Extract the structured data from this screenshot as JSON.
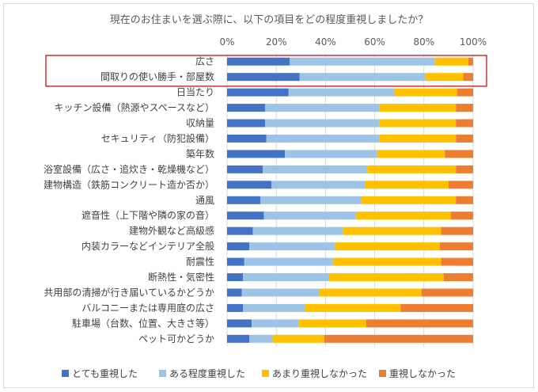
{
  "chart_data": {
    "type": "bar",
    "orientation": "horizontal",
    "stacked": "percent",
    "title": "現在のお住まいを選ぶ際に、以下の項目をどの程度重視しましたか？",
    "xlim": [
      0,
      100
    ],
    "xticks": [
      "0%",
      "20%",
      "40%",
      "60%",
      "80%",
      "100%"
    ],
    "grid": true,
    "legend": "bottom",
    "categories": [
      "広さ",
      "間取りの使い勝手・部屋数",
      "日当たり",
      "キッチン設備（熱源やスペースなど）",
      "収納量",
      "セキュリティ（防犯設備）",
      "築年数",
      "浴室設備（広さ・追炊き・乾燥機など）",
      "建物構造（鉄筋コンクリート造か否か）",
      "通風",
      "遮音性（上下階や隣の家の音）",
      "建物外観など高級感",
      "内装カラーなどインテリア全般",
      "耐震性",
      "断熱性・気密性",
      "共用部の清掃が行き届いているかどうか",
      "バルコニーまたは専用庭の広さ",
      "駐車場（台数、位置、大きさ等）",
      "ペット可かどうか"
    ],
    "series": [
      {
        "name": "とても重視した",
        "color": "#4472c4",
        "values": [
          25.5,
          29.5,
          25,
          15.5,
          15.5,
          16,
          23.5,
          14.5,
          18,
          13.5,
          15,
          10.5,
          9,
          7,
          6.5,
          6,
          6.5,
          10,
          9
        ]
      },
      {
        "name": "ある程度重視した",
        "color": "#9dc3e6",
        "values": [
          59,
          51,
          43,
          46.5,
          46.5,
          46,
          37.5,
          42.5,
          38,
          41,
          37.5,
          36.5,
          35,
          36,
          35,
          31.5,
          25,
          19,
          9.5
        ]
      },
      {
        "name": "あまり重視しなかった",
        "color": "#ffc000",
        "values": [
          13.5,
          15.5,
          25.5,
          31,
          31,
          31,
          27.5,
          36,
          34,
          38.5,
          38.5,
          40,
          42.5,
          44,
          46.5,
          41.5,
          39,
          27.5,
          21
        ]
      },
      {
        "name": "重視しなかった",
        "color": "#ed7d31",
        "values": [
          2,
          4,
          6.5,
          7,
          7,
          7,
          11.5,
          7,
          10,
          7,
          9,
          13,
          13.5,
          13,
          12,
          21,
          29.5,
          43.5,
          60.5
        ]
      }
    ],
    "highlight_box_rows": [
      0,
      1
    ],
    "highlight_box_color": "#c00000",
    "gridline_color": "#d9d9d9"
  }
}
